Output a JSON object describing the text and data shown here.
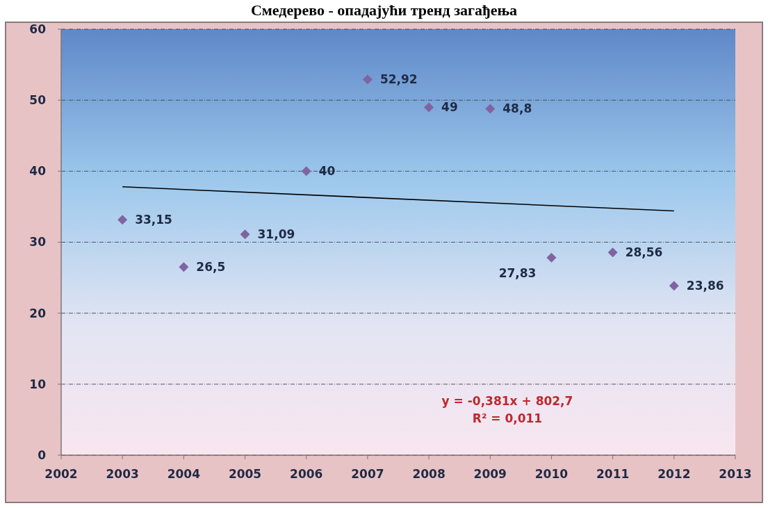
{
  "chart_data": {
    "type": "scatter",
    "title": "Смедерево - опадајући тренд загађења",
    "x": [
      2003,
      2004,
      2005,
      2006,
      2007,
      2008,
      2009,
      2010,
      2011,
      2012
    ],
    "series": [
      {
        "color": "#8064a2",
        "marker": "diamond",
        "values": [
          33.15,
          26.5,
          31.09,
          40,
          52.92,
          49,
          48.8,
          27.83,
          28.56,
          23.86
        ],
        "value_labels": [
          "33,15",
          "26,5",
          "31,09",
          "40",
          "52,92",
          "49",
          "48,8",
          "27,83",
          "28,56",
          "23,86"
        ]
      },
      {
        "type": "line",
        "color": "#000000",
        "marker": "none",
        "x": [
          2003,
          2012
        ],
        "values": [
          37.8,
          34.4
        ]
      }
    ],
    "annotations": [
      "y = -0,381x + 802,7",
      "R² = 0,011"
    ],
    "xlim": [
      2002,
      2013
    ],
    "xticks": [
      2002,
      2003,
      2004,
      2005,
      2006,
      2007,
      2008,
      2009,
      2010,
      2011,
      2012,
      2013
    ],
    "ylim": [
      0,
      60
    ],
    "yticks": [
      0,
      10,
      20,
      30,
      40,
      50,
      60
    ],
    "grid": "y"
  }
}
